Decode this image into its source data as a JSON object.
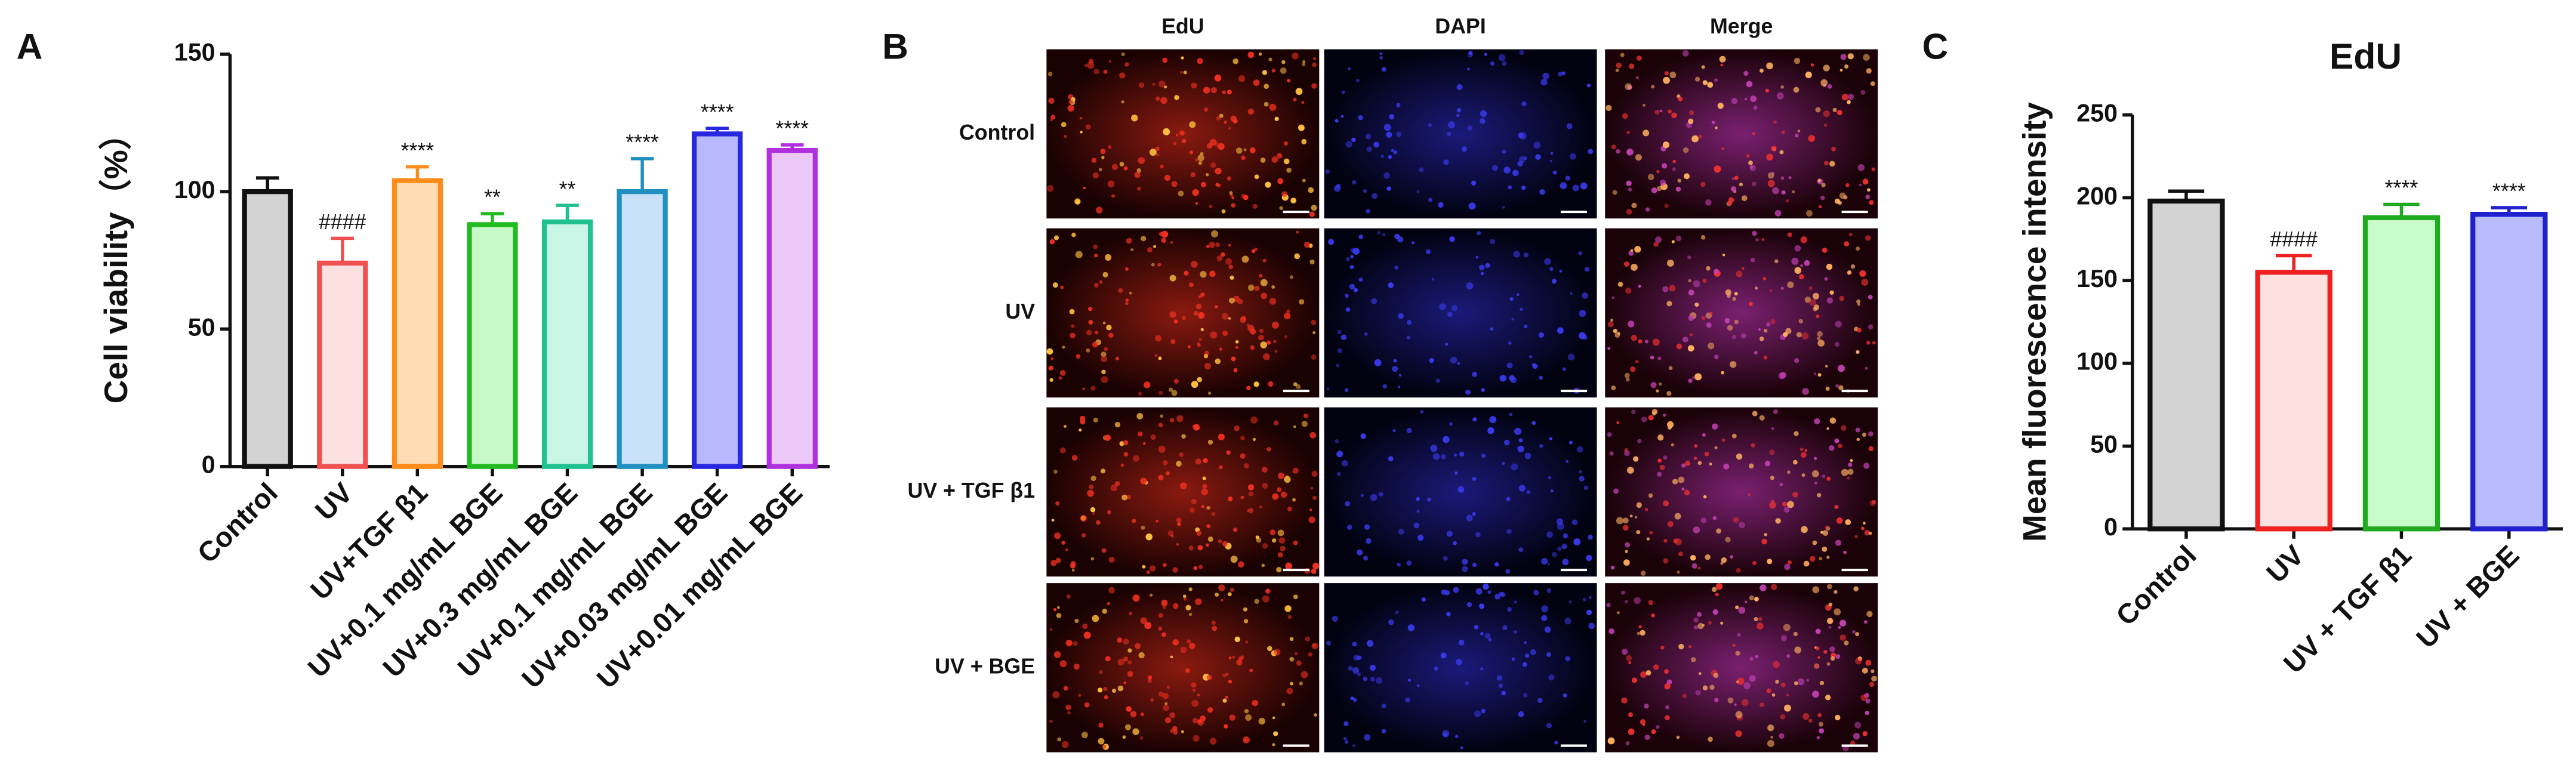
{
  "panel_labels": [
    "A",
    "B",
    "C"
  ],
  "image_grid": {
    "columns": [
      "EdU",
      "DAPI",
      "Merge"
    ],
    "rows": [
      "Control",
      "UV",
      "UV + TGF β1",
      "UV + BGE"
    ]
  },
  "chart_data": [
    {
      "type": "bar",
      "ylabel": "Cell viability（%）",
      "categories": [
        "Control",
        "UV",
        "UV+TGF β1",
        "UV+0.1 mg/mL BGE",
        "UV+0.3 mg/mL BGE",
        "UV+0.1 mg/mL BGE",
        "UV+0.03 mg/mL BGE",
        "UV+0.01 mg/mL BGE"
      ],
      "values": [
        100,
        74,
        104,
        88,
        89,
        100,
        121,
        115
      ],
      "errors": [
        5,
        9,
        5,
        4,
        6,
        12,
        2,
        2
      ],
      "annotations": [
        null,
        "####",
        "****",
        "**",
        "**",
        "****",
        "****",
        "****"
      ],
      "colors": [
        "#111111",
        "#f05050",
        "#ff8c1a",
        "#22bb22",
        "#20c090",
        "#2090c0",
        "#2828e0",
        "#b030e0"
      ],
      "fill_colors": [
        "#d3d3d3",
        "#fde0e0",
        "#ffdcb4",
        "#c8f8c8",
        "#c8f5e6",
        "#c8e0f8",
        "#b8b8ff",
        "#ecc8f8"
      ],
      "ylim": [
        0,
        150
      ],
      "yticks": [
        0,
        50,
        100,
        150
      ]
    },
    {
      "type": "bar",
      "title": "EdU",
      "ylabel": "Mean fluorescence intensity",
      "categories": [
        "Control",
        "UV",
        "UV + TGF β1",
        "UV + BGE"
      ],
      "values": [
        198,
        155,
        188,
        190
      ],
      "errors": [
        6,
        10,
        8,
        4
      ],
      "annotations": [
        null,
        "####",
        "****",
        "****"
      ],
      "colors": [
        "#111111",
        "#ee2020",
        "#20aa20",
        "#2020cc"
      ],
      "fill_colors": [
        "#d3d3d3",
        "#fde0e0",
        "#c8fcc8",
        "#b8bcff"
      ],
      "ylim": [
        0,
        250
      ],
      "yticks": [
        0,
        50,
        100,
        150,
        200,
        250
      ]
    }
  ]
}
